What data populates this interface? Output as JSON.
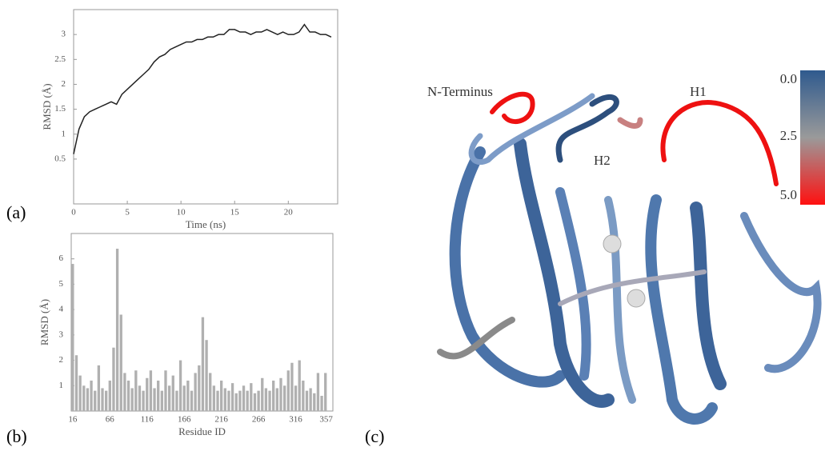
{
  "chart_data": [
    {
      "type": "line",
      "panel": "(a)",
      "xlabel": "Time (ns)",
      "ylabel": "RMSD (Å)",
      "xlim": [
        0,
        24.6
      ],
      "ylim": [
        -0.4,
        3.5
      ],
      "xticks": [
        0,
        5,
        10,
        15,
        20
      ],
      "yticks": [
        0.5,
        1,
        1.5,
        2,
        2.5,
        3
      ],
      "x": [
        0,
        0.5,
        1,
        1.5,
        2,
        2.5,
        3,
        3.5,
        4,
        4.5,
        5,
        5.5,
        6,
        6.5,
        7,
        7.5,
        8,
        8.5,
        9,
        9.5,
        10,
        10.5,
        11,
        11.5,
        12,
        12.5,
        13,
        13.5,
        14,
        14.5,
        15,
        15.5,
        16,
        16.5,
        17,
        17.5,
        18,
        18.5,
        19,
        19.5,
        20,
        20.5,
        21,
        21.5,
        22,
        22.5,
        23,
        23.5,
        24
      ],
      "series": [
        {
          "color": "#222222",
          "values": [
            0.6,
            1.1,
            1.35,
            1.45,
            1.5,
            1.55,
            1.6,
            1.65,
            1.6,
            1.8,
            1.9,
            2.0,
            2.1,
            2.2,
            2.3,
            2.45,
            2.55,
            2.6,
            2.7,
            2.75,
            2.8,
            2.85,
            2.85,
            2.9,
            2.9,
            2.95,
            2.95,
            3.0,
            3.0,
            3.1,
            3.1,
            3.05,
            3.05,
            3.0,
            3.05,
            3.05,
            3.1,
            3.05,
            3.0,
            3.05,
            3.0,
            3.0,
            3.05,
            3.2,
            3.05,
            3.05,
            3.0,
            3.0,
            2.95
          ]
        }
      ]
    },
    {
      "type": "bar",
      "panel": "(b)",
      "xlabel": "Residue ID",
      "ylabel": "RMSD (Å)",
      "xlim": [
        14,
        366
      ],
      "ylim": [
        0,
        7
      ],
      "xticks": [
        16,
        66,
        116,
        166,
        216,
        266,
        316,
        357
      ],
      "yticks": [
        1,
        2,
        3,
        4,
        5,
        6
      ],
      "x": [
        16,
        21,
        26,
        31,
        36,
        41,
        46,
        51,
        56,
        61,
        66,
        71,
        76,
        81,
        86,
        91,
        96,
        101,
        106,
        111,
        116,
        121,
        126,
        131,
        136,
        141,
        146,
        151,
        156,
        161,
        166,
        171,
        176,
        181,
        186,
        191,
        196,
        201,
        206,
        211,
        216,
        221,
        226,
        231,
        236,
        241,
        246,
        251,
        256,
        261,
        266,
        271,
        276,
        281,
        286,
        291,
        296,
        301,
        306,
        311,
        316,
        321,
        326,
        331,
        336,
        341,
        346,
        351,
        356
      ],
      "series": [
        {
          "color": "#b0b0b0",
          "values": [
            5.8,
            2.2,
            1.4,
            1.0,
            0.9,
            1.2,
            0.8,
            1.8,
            0.9,
            0.8,
            1.2,
            2.5,
            6.4,
            3.8,
            1.5,
            1.2,
            0.9,
            1.6,
            1.0,
            0.8,
            1.3,
            1.6,
            0.9,
            1.2,
            0.8,
            1.6,
            1.0,
            1.4,
            0.8,
            2.0,
            1.0,
            1.2,
            0.8,
            1.5,
            1.8,
            3.7,
            2.8,
            1.5,
            1.0,
            0.8,
            1.2,
            0.9,
            0.8,
            1.1,
            0.7,
            0.8,
            1.0,
            0.8,
            1.1,
            0.7,
            0.8,
            1.3,
            0.9,
            0.8,
            1.2,
            0.9,
            1.3,
            1.0,
            1.6,
            1.9,
            1.0,
            2.0,
            1.2,
            0.8,
            0.9,
            0.7,
            1.5,
            0.6,
            1.5
          ]
        }
      ]
    }
  ],
  "structure": {
    "panel": "(c)",
    "labels": [
      "N-Terminus",
      "H1",
      "H2"
    ],
    "colorbar_ticks": [
      "0.0",
      "2.5",
      "5.0"
    ]
  }
}
